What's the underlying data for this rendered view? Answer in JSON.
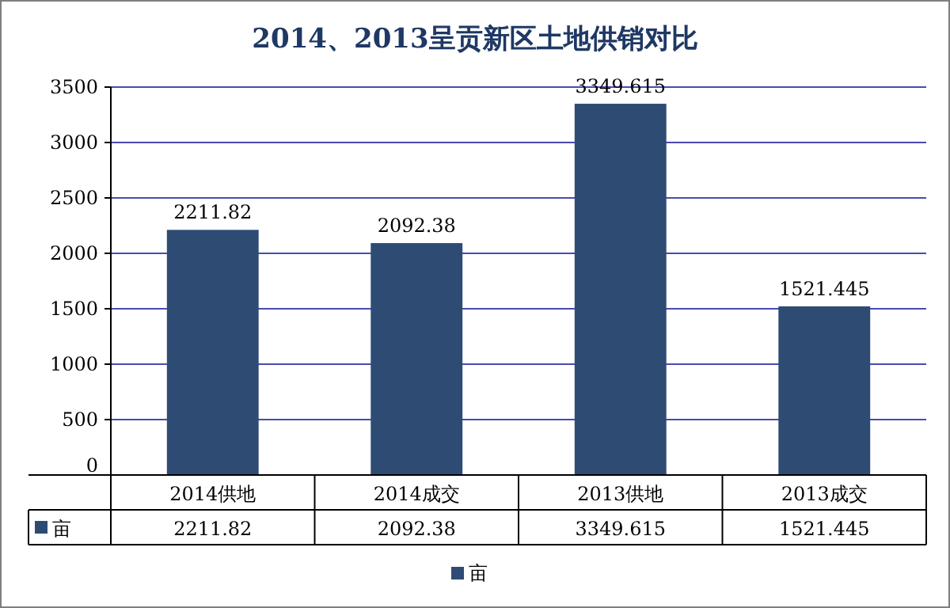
{
  "chart_data": {
    "type": "bar",
    "title": "2014、2013呈贡新区土地供销对比",
    "categories": [
      "2014供地",
      "2014成交",
      "2013供地",
      "2013成交"
    ],
    "series": [
      {
        "name": "亩",
        "color": "#2e4b74",
        "values": [
          2211.82,
          2092.38,
          3349.615,
          1521.445
        ],
        "value_labels": [
          "2211.82",
          "2092.38",
          "3349.615",
          "1521.445"
        ]
      }
    ],
    "ylim": [
      0,
      3500
    ],
    "yticks": [
      0,
      500,
      1000,
      1500,
      2000,
      2500,
      3000,
      3500
    ],
    "annotations": [
      "2211.82",
      "2092.38",
      "3349.615",
      "1521.445"
    ],
    "grid": "y",
    "legend": "bottom",
    "data_labels": true
  }
}
